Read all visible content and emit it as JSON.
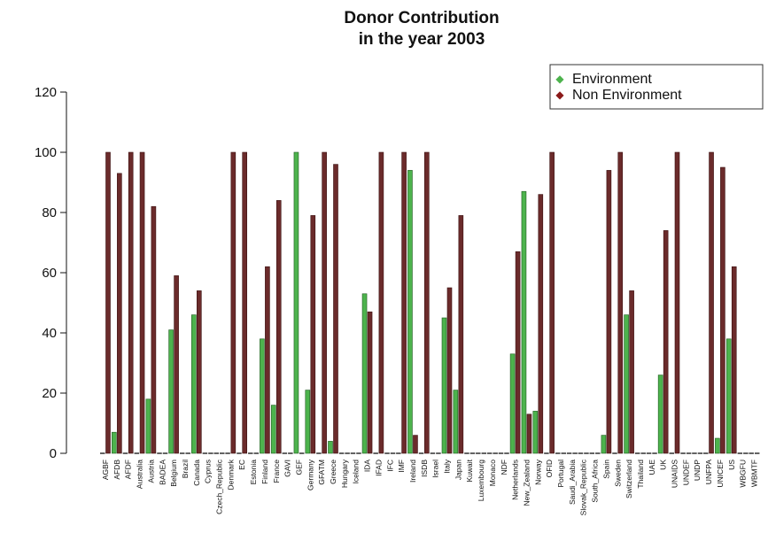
{
  "chart_data": {
    "type": "bar",
    "title": [
      "Donor Contribution",
      "in the year  2003"
    ],
    "xlabel": "",
    "ylabel": "",
    "ylim": [
      0,
      120
    ],
    "yticks": [
      0,
      20,
      40,
      60,
      80,
      100,
      120
    ],
    "legend_position": "top-right",
    "categories": [
      "AGBF",
      "AFDB",
      "AFDF",
      "Australia",
      "Austria",
      "BADEA",
      "Belgium",
      "Brazil",
      "Canada",
      "Cyprus",
      "Czech_Republic",
      "Denmark",
      "EC",
      "Estonia",
      "Finland",
      "France",
      "GAVI",
      "GEF",
      "Germany",
      "GFATM",
      "Greece",
      "Hungary",
      "Iceland",
      "IDA",
      "IFAD",
      "IFC",
      "IMF",
      "Ireland",
      "ISDB",
      "Israel",
      "Italy",
      "Japan",
      "Kuwait",
      "Luxembourg",
      "Monaco",
      "NDF",
      "Netherlands",
      "New_Zealand",
      "Norway",
      "OFID",
      "Portugal",
      "Saudi_Arabia",
      "Slovak_Republic",
      "South_Africa",
      "Spain",
      "Sweden",
      "Switzerland",
      "Thailand",
      "UAE",
      "UK",
      "UNAIDS",
      "UNDEF",
      "UNDP",
      "UNFPA",
      "UNICEF",
      "US",
      "WBGFU",
      "WBMTF"
    ],
    "series": [
      {
        "name": "Environment",
        "color": "#4db34d",
        "values": [
          0,
          7,
          0,
          0,
          18,
          0,
          41,
          0,
          46,
          0,
          0,
          0,
          0,
          0,
          38,
          16,
          0,
          100,
          21,
          0,
          4,
          0,
          0,
          53,
          0,
          0,
          0,
          94,
          0,
          0,
          45,
          21,
          0,
          0,
          0,
          0,
          33,
          87,
          14,
          0,
          0,
          0,
          0,
          0,
          6,
          0,
          46,
          0,
          0,
          26,
          0,
          0,
          0,
          0,
          5,
          38,
          0,
          0
        ]
      },
      {
        "name": "Non Environment",
        "color": "#6b2b2b",
        "values": [
          100,
          93,
          100,
          100,
          82,
          0,
          59,
          0,
          54,
          0,
          0,
          100,
          100,
          0,
          62,
          84,
          0,
          0,
          79,
          100,
          96,
          0,
          0,
          47,
          100,
          0,
          100,
          6,
          100,
          0,
          55,
          79,
          0,
          0,
          0,
          0,
          67,
          13,
          86,
          100,
          0,
          0,
          0,
          0,
          94,
          100,
          54,
          0,
          0,
          74,
          100,
          0,
          0,
          100,
          95,
          62,
          0,
          0
        ]
      }
    ]
  }
}
